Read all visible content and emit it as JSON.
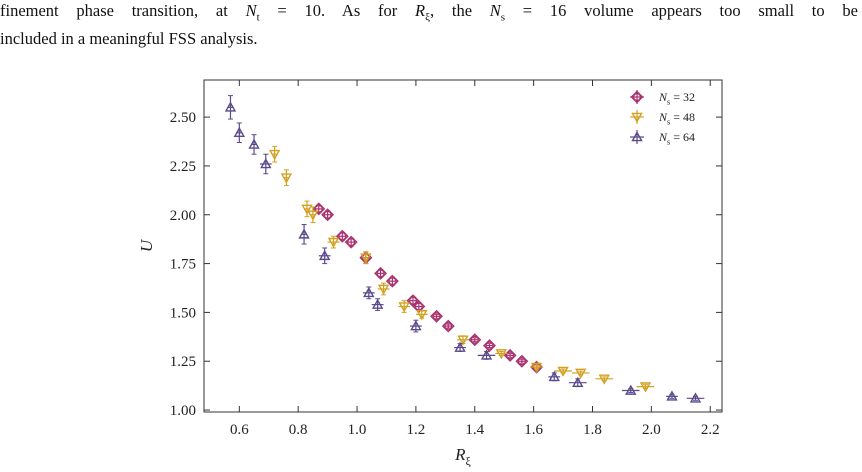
{
  "paragraph": {
    "lines": [
      [
        {
          "text": "finement phase transition, at "
        },
        {
          "text": "N",
          "style": "italic"
        },
        {
          "text": "t",
          "style": "sub"
        },
        {
          "text": " = 10. As for "
        },
        {
          "text": "R",
          "style": "italic"
        },
        {
          "text": "ξ",
          "style": "sub"
        },
        {
          "text": ", the "
        },
        {
          "text": "N",
          "style": "italic"
        },
        {
          "text": "s",
          "style": "sub"
        },
        {
          "text": " = 16 volume appears too small to be"
        }
      ],
      [
        {
          "text": "included in a meaningful FSS analysis."
        }
      ]
    ]
  },
  "chart_data": {
    "type": "scatter",
    "xlabel": [
      {
        "text": "R",
        "style": "italic"
      },
      {
        "text": "ξ",
        "style": "sub"
      }
    ],
    "ylabel": [
      {
        "text": "U",
        "style": "italic"
      }
    ],
    "xlim": [
      0.48,
      2.24
    ],
    "ylim": [
      0.99,
      2.69
    ],
    "xticks": [
      0.6,
      0.8,
      {
        "value": 1.0,
        "label": "1.0"
      },
      1.2,
      1.4,
      1.6,
      1.8,
      {
        "value": 2.0,
        "label": "2.0"
      },
      2.2
    ],
    "yticks": [
      {
        "value": 1.0,
        "label": "1.00"
      },
      1.25,
      {
        "value": 1.5,
        "label": "1.50"
      },
      1.75,
      {
        "value": 2.0,
        "label": "2.00"
      },
      2.25,
      {
        "value": 2.5,
        "label": "2.50"
      }
    ],
    "legend": "upper right",
    "series": [
      {
        "name": [
          {
            "text": "N",
            "style": "italic"
          },
          {
            "text": "s",
            "style": "sub"
          },
          {
            "text": " = 32"
          }
        ],
        "color": "#a8336f",
        "marker": "circle",
        "x": [
          0.87,
          0.9,
          0.95,
          0.98,
          1.03,
          1.08,
          1.12,
          1.19,
          1.21,
          1.27,
          1.31,
          1.4,
          1.45,
          1.52,
          1.56,
          1.61
        ],
        "values": [
          2.03,
          2.0,
          1.89,
          1.86,
          1.78,
          1.7,
          1.66,
          1.56,
          1.53,
          1.48,
          1.43,
          1.36,
          1.33,
          1.28,
          1.25,
          1.22
        ],
        "xerr": [
          0.01,
          0.01,
          0.01,
          0.01,
          0.01,
          0.01,
          0.01,
          0.01,
          0.01,
          0.01,
          0.01,
          0.01,
          0.01,
          0.01,
          0.01,
          0.01
        ],
        "yerr": [
          0.02,
          0.02,
          0.02,
          0.02,
          0.03,
          0.02,
          0.02,
          0.02,
          0.02,
          0.01,
          0.01,
          0.01,
          0.01,
          0.01,
          0.01,
          0.01
        ]
      },
      {
        "name": [
          {
            "text": "N",
            "style": "italic"
          },
          {
            "text": "s",
            "style": "sub"
          },
          {
            "text": " = 48"
          }
        ],
        "color": "#d4a020",
        "marker": "down",
        "x": [
          0.72,
          0.76,
          0.83,
          0.85,
          0.92,
          1.03,
          1.09,
          1.16,
          1.22,
          1.36,
          1.49,
          1.61,
          1.7,
          1.76,
          1.84,
          1.98
        ],
        "values": [
          2.31,
          2.19,
          2.03,
          2.0,
          1.86,
          1.78,
          1.62,
          1.53,
          1.49,
          1.36,
          1.29,
          1.22,
          1.2,
          1.19,
          1.16,
          1.12
        ],
        "xerr": [
          0.01,
          0.01,
          0.01,
          0.01,
          0.02,
          0.01,
          0.02,
          0.02,
          0.02,
          0.02,
          0.02,
          0.02,
          0.03,
          0.03,
          0.03,
          0.03
        ],
        "yerr": [
          0.04,
          0.04,
          0.04,
          0.04,
          0.03,
          0.03,
          0.03,
          0.03,
          0.02,
          0.02,
          0.01,
          0.01,
          0.01,
          0.01,
          0.01,
          0.01
        ]
      },
      {
        "name": [
          {
            "text": "N",
            "style": "italic"
          },
          {
            "text": "s",
            "style": "sub"
          },
          {
            "text": " = 64"
          }
        ],
        "color": "#5a4a8a",
        "marker": "up",
        "x": [
          0.57,
          0.6,
          0.65,
          0.69,
          0.82,
          0.89,
          1.04,
          1.07,
          1.2,
          1.35,
          1.44,
          1.67,
          1.75,
          1.93,
          2.07,
          2.15
        ],
        "values": [
          2.55,
          2.42,
          2.36,
          2.26,
          1.9,
          1.79,
          1.6,
          1.54,
          1.43,
          1.32,
          1.28,
          1.17,
          1.14,
          1.1,
          1.07,
          1.06
        ],
        "xerr": [
          0.01,
          0.01,
          0.01,
          0.02,
          0.01,
          0.02,
          0.02,
          0.02,
          0.02,
          0.02,
          0.03,
          0.02,
          0.03,
          0.03,
          0.02,
          0.03
        ],
        "yerr": [
          0.06,
          0.05,
          0.05,
          0.05,
          0.05,
          0.04,
          0.03,
          0.03,
          0.03,
          0.02,
          0.02,
          0.02,
          0.02,
          0.01,
          0.01,
          0.01
        ]
      }
    ]
  }
}
